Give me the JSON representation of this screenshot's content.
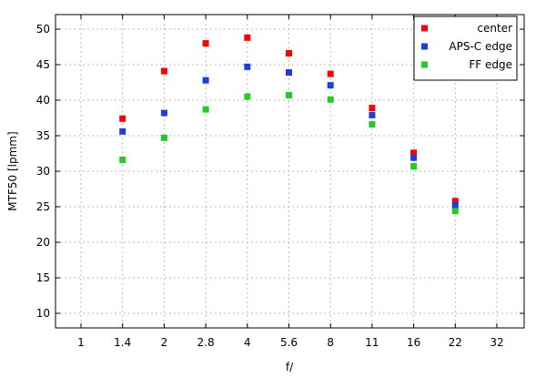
{
  "chart_data": {
    "type": "scatter",
    "title": "",
    "xlabel": "f/",
    "ylabel": "MTF50 [lpmm]",
    "categories": [
      "1",
      "1.4",
      "2",
      "2.8",
      "4",
      "5.6",
      "8",
      "11",
      "16",
      "22",
      "32"
    ],
    "ylim": [
      8,
      52
    ],
    "yticks": [
      10,
      15,
      20,
      25,
      30,
      35,
      40,
      45,
      50
    ],
    "grid": true,
    "legend_position": "top-right",
    "series": [
      {
        "name": "center",
        "color": "#ff0000",
        "values": [
          null,
          37.4,
          44.1,
          48.0,
          48.8,
          46.6,
          43.7,
          38.9,
          32.6,
          25.8,
          null
        ]
      },
      {
        "name": "APS-C edge",
        "color": "#1a3ee6",
        "values": [
          null,
          35.6,
          38.2,
          42.8,
          44.7,
          43.9,
          42.1,
          37.9,
          31.9,
          25.2,
          null
        ]
      },
      {
        "name": "FF edge",
        "color": "#22cc22",
        "values": [
          null,
          31.6,
          34.7,
          38.7,
          40.5,
          40.7,
          40.1,
          36.6,
          30.7,
          24.4,
          null
        ]
      }
    ]
  }
}
